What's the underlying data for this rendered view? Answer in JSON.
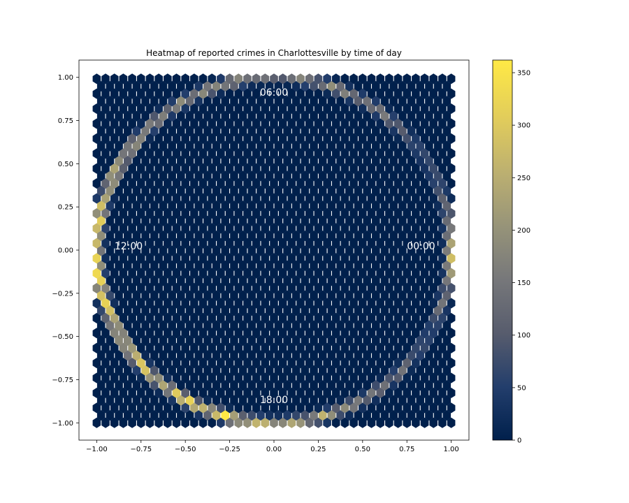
{
  "chart_data": {
    "type": "heatmap",
    "subtype": "hexbin",
    "title": "Heatmap of reported crimes in Charlottesville by time of day",
    "xlabel": "",
    "ylabel": "",
    "xlim": [
      -1.1,
      1.1
    ],
    "ylim": [
      -1.1,
      1.1
    ],
    "xticks": [
      -1.0,
      -0.75,
      -0.5,
      -0.25,
      0.0,
      0.25,
      0.5,
      0.75,
      1.0
    ],
    "yticks": [
      -1.0,
      -0.75,
      -0.5,
      -0.25,
      0.0,
      0.25,
      0.5,
      0.75,
      1.0
    ],
    "xtick_labels": [
      "−1.00",
      "−0.75",
      "−0.50",
      "−0.25",
      "0.00",
      "0.25",
      "0.50",
      "0.75",
      "1.00"
    ],
    "ytick_labels": [
      "−1.00",
      "−0.75",
      "−0.50",
      "−0.25",
      "0.00",
      "0.25",
      "0.50",
      "0.75",
      "1.00"
    ],
    "colormap": "cividis",
    "background_color": "#00204c",
    "colorbar": {
      "range": [
        0,
        362
      ],
      "ticks": [
        0,
        50,
        100,
        150,
        200,
        250,
        300,
        350
      ],
      "tick_labels": [
        "0",
        "50",
        "100",
        "150",
        "200",
        "250",
        "300",
        "350"
      ]
    },
    "annotations": [
      {
        "text": "06:00",
        "x": 0.0,
        "y": 0.91
      },
      {
        "text": "12:00",
        "x": -0.82,
        "y": 0.02
      },
      {
        "text": "00:00",
        "x": 0.83,
        "y": 0.02
      },
      {
        "text": "18:00",
        "x": 0.0,
        "y": -0.87
      }
    ],
    "ring_profile": {
      "description": "count density along the unit circle by angle (degrees, 0 = right / 00:00, 90 = top / 06:00)",
      "angles_deg": [
        0,
        15,
        30,
        45,
        60,
        75,
        90,
        105,
        120,
        135,
        150,
        165,
        180,
        195,
        210,
        225,
        240,
        255,
        270,
        285,
        300,
        315,
        330,
        345
      ],
      "values": [
        265,
        130,
        80,
        120,
        160,
        180,
        110,
        200,
        175,
        180,
        260,
        270,
        340,
        280,
        260,
        280,
        300,
        320,
        200,
        230,
        160,
        130,
        80,
        150
      ]
    }
  }
}
